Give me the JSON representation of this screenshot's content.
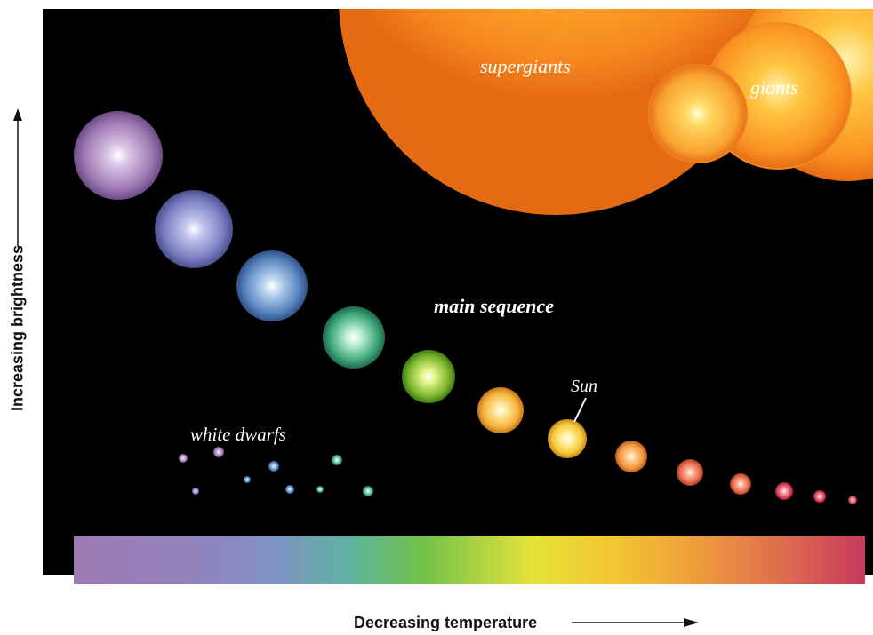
{
  "labels": {
    "supergiants": "supergiants",
    "giants": "giants",
    "main_sequence": "main sequence",
    "sun": "Sun",
    "white_dwarfs": "white dwarfs"
  },
  "axes": {
    "y_label": "Increasing brightness",
    "x_label": "Decreasing temperature"
  },
  "colors": {
    "background": "#000000",
    "violet": "#a07ab2",
    "blue": "#6f86c6",
    "green": "#5fb3a0",
    "yellow": "#f2d23a",
    "orange": "#f08a2a",
    "red": "#c8395a"
  }
}
